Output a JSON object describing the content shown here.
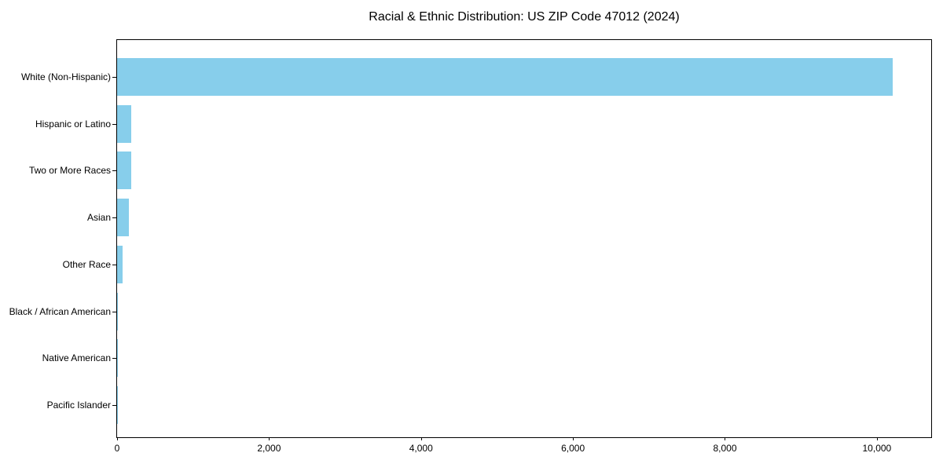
{
  "page": {
    "background": "#ffffff"
  },
  "chart_data": {
    "type": "bar",
    "orientation": "horizontal",
    "title": "Racial & Ethnic Distribution: US ZIP Code 47012 (2024)",
    "categories": [
      "White (Non-Hispanic)",
      "Hispanic or Latino",
      "Two or More Races",
      "Asian",
      "Other Race",
      "Black / African American",
      "Native American",
      "Pacific Islander"
    ],
    "values": [
      10210,
      185,
      190,
      150,
      70,
      10,
      6,
      3
    ],
    "bar_color": "#87CEEB",
    "axis_color": "#000000",
    "text_color": "#000000",
    "xlabel": "",
    "ylabel": "",
    "xlim": [
      0,
      10715
    ],
    "xticks": {
      "values": [
        0,
        2000,
        4000,
        6000,
        8000,
        10000
      ],
      "labels": [
        "0",
        "2,000",
        "4,000",
        "6,000",
        "8,000",
        "10,000"
      ]
    },
    "grid": false,
    "legend": null,
    "axes_frame": true
  }
}
